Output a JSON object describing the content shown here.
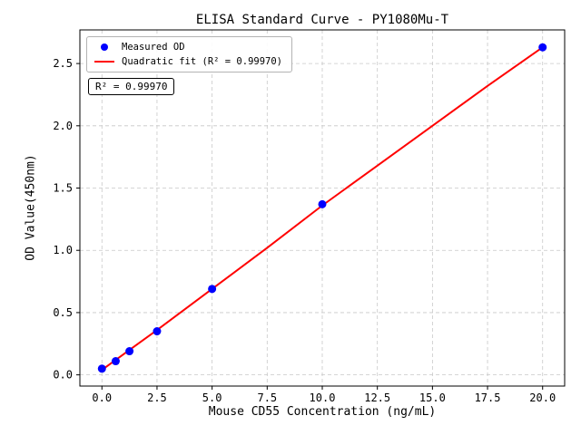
{
  "chart_data": {
    "type": "scatter",
    "title": "ELISA Standard Curve - PY1080Mu-T",
    "xlabel": "Mouse CD55 Concentration (ng/mL)",
    "ylabel": "OD Value(450nm)",
    "xlim": [
      -1,
      21
    ],
    "ylim": [
      -0.09,
      2.77
    ],
    "grid": true,
    "xtick_values": [
      0,
      2.5,
      5,
      7.5,
      10,
      12.5,
      15,
      17.5,
      20
    ],
    "xtick_labels": [
      "0.0",
      "2.5",
      "5.0",
      "7.5",
      "10.0",
      "12.5",
      "15.0",
      "17.5",
      "20.0"
    ],
    "ytick_values": [
      0,
      0.5,
      1,
      1.5,
      2,
      2.5
    ],
    "ytick_labels": [
      "0.0",
      "0.5",
      "1.0",
      "1.5",
      "2.0",
      "2.5"
    ],
    "series": [
      {
        "name": "Quadratic fit",
        "type": "line",
        "color": "#ff0000",
        "x": [
          0,
          2.5,
          5,
          7.5,
          10,
          12.5,
          15,
          17.5,
          20
        ],
        "y": [
          0.04,
          0.36,
          0.69,
          1.02,
          1.36,
          1.68,
          2.0,
          2.32,
          2.63
        ]
      },
      {
        "name": "Measured OD",
        "type": "scatter",
        "color": "#0000ff",
        "x": [
          0,
          0.625,
          1.25,
          2.5,
          5,
          10,
          20
        ],
        "y": [
          0.05,
          0.11,
          0.19,
          0.35,
          0.69,
          1.37,
          2.63
        ]
      }
    ],
    "legend": {
      "position": "upper-left",
      "entries": [
        {
          "label": "Measured OD",
          "type": "marker",
          "color": "#0000ff"
        },
        {
          "label": "Quadratic fit (R² = 0.99970)",
          "type": "line",
          "color": "#ff0000"
        }
      ]
    },
    "annotation": {
      "text": "R² = 0.99970"
    },
    "colors": {
      "background": "#ffffff",
      "grid": "#c8c8c8",
      "axis": "#000000",
      "scatter": "#0000ff",
      "fit_line": "#ff0000"
    }
  }
}
